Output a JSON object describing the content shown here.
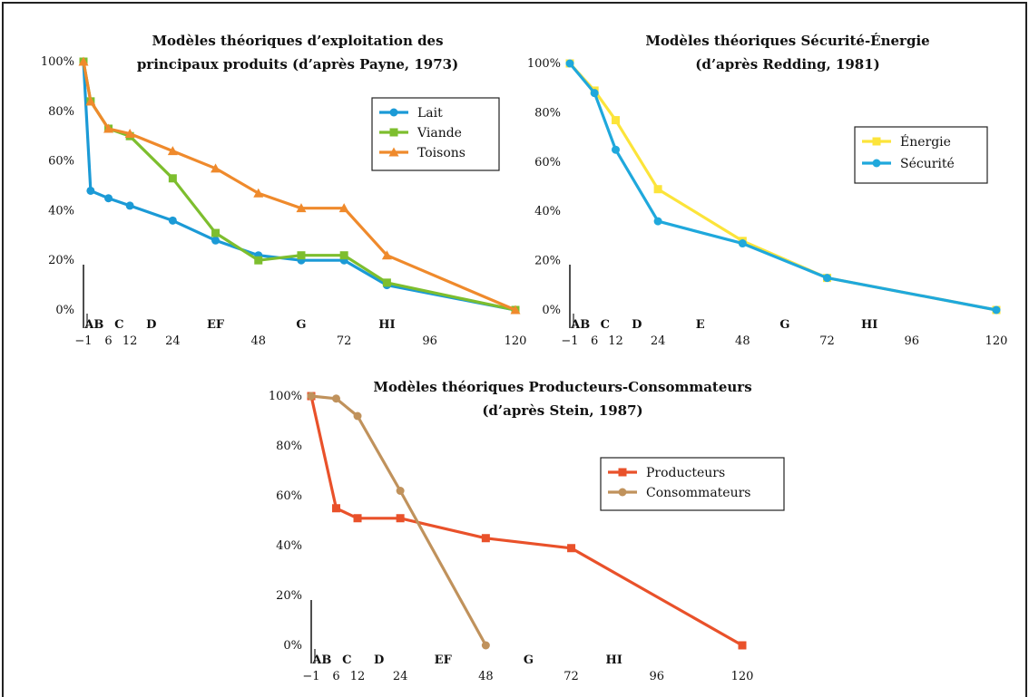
{
  "chart_data": [
    {
      "type": "line",
      "title_lines": [
        "Modèles théoriques d’exploitation des",
        "principaux produits (d’après Payne, 1973)"
      ],
      "xlabel": "",
      "ylabel": "",
      "xlim": [
        -1,
        120
      ],
      "ylim": [
        0,
        100
      ],
      "x_ticks": [
        -1,
        6,
        12,
        24,
        48,
        72,
        96,
        120
      ],
      "x_tick_labels": [
        "−1",
        "6",
        "12",
        "24",
        "48",
        "72",
        "96",
        "120"
      ],
      "y_ticks": [
        0,
        20,
        40,
        60,
        80,
        100
      ],
      "y_tick_labels": [
        "0%",
        "20%",
        "40%",
        "60%",
        "80%",
        "100%"
      ],
      "phases": [
        {
          "label": "AB",
          "x": 2
        },
        {
          "label": "C",
          "x": 9
        },
        {
          "label": "D",
          "x": 18
        },
        {
          "label": "EF",
          "x": 36
        },
        {
          "label": "G",
          "x": 60
        },
        {
          "label": "HI",
          "x": 84
        }
      ],
      "legend_position": "top-right",
      "series": [
        {
          "name": "Lait",
          "color": "#1b9ad6",
          "marker": "circle",
          "x": [
            -1,
            1,
            6,
            12,
            24,
            36,
            48,
            60,
            72,
            84,
            120
          ],
          "y": [
            100,
            48,
            45,
            42,
            36,
            28,
            22,
            20,
            20,
            10,
            0
          ]
        },
        {
          "name": "Viande",
          "color": "#7dbe2e",
          "marker": "square",
          "x": [
            -1,
            1,
            6,
            12,
            24,
            36,
            48,
            60,
            72,
            84,
            120
          ],
          "y": [
            100,
            84,
            73,
            70,
            53,
            31,
            20,
            22,
            22,
            11,
            0
          ]
        },
        {
          "name": "Toisons",
          "color": "#ef8a2c",
          "marker": "triangle",
          "x": [
            -1,
            1,
            6,
            12,
            24,
            36,
            48,
            60,
            72,
            84,
            120
          ],
          "y": [
            100,
            84,
            73,
            71,
            64,
            57,
            47,
            41,
            41,
            22,
            0
          ]
        }
      ]
    },
    {
      "type": "line",
      "title_lines": [
        "Modèles théoriques Sécurité-Énergie",
        "(d’après Redding, 1981)"
      ],
      "xlabel": "",
      "ylabel": "",
      "xlim": [
        -1,
        120
      ],
      "ylim": [
        0,
        100
      ],
      "x_ticks": [
        -1,
        6,
        12,
        24,
        48,
        72,
        96,
        120
      ],
      "x_tick_labels": [
        "−1",
        "6",
        "12",
        "24",
        "48",
        "72",
        "96",
        "120"
      ],
      "y_ticks": [
        0,
        20,
        40,
        60,
        80,
        100
      ],
      "y_tick_labels": [
        "0%",
        "20%",
        "40%",
        "60%",
        "80%",
        "100%"
      ],
      "phases": [
        {
          "label": "AB",
          "x": 2
        },
        {
          "label": "C",
          "x": 9
        },
        {
          "label": "D",
          "x": 18
        },
        {
          "label": "E",
          "x": 36
        },
        {
          "label": "G",
          "x": 60
        },
        {
          "label": "HI",
          "x": 84
        }
      ],
      "legend_position": "top-right",
      "series": [
        {
          "name": "Énergie",
          "color": "#fce43a",
          "marker": "square",
          "x": [
            -1,
            6,
            12,
            24,
            48,
            72,
            120
          ],
          "y": [
            100,
            89,
            77,
            49,
            28,
            13,
            0
          ]
        },
        {
          "name": "Sécurité",
          "color": "#1fa8dc",
          "marker": "circle",
          "x": [
            -1,
            6,
            12,
            24,
            48,
            72,
            120
          ],
          "y": [
            100,
            88,
            65,
            36,
            27,
            13,
            0
          ]
        }
      ]
    },
    {
      "type": "line",
      "title_lines": [
        "Modèles théoriques Producteurs-Consommateurs",
        "(d’après Stein, 1987)"
      ],
      "xlabel": "",
      "ylabel": "",
      "xlim": [
        -1,
        120
      ],
      "ylim": [
        0,
        100
      ],
      "x_ticks": [
        -1,
        6,
        12,
        24,
        48,
        72,
        96,
        120
      ],
      "x_tick_labels": [
        "−1",
        "6",
        "12",
        "24",
        "48",
        "72",
        "96",
        "120"
      ],
      "y_ticks": [
        0,
        20,
        40,
        60,
        80,
        100
      ],
      "y_tick_labels": [
        "0%",
        "20%",
        "40%",
        "60%",
        "80%",
        "100%"
      ],
      "phases": [
        {
          "label": "AB",
          "x": 2
        },
        {
          "label": "C",
          "x": 9
        },
        {
          "label": "D",
          "x": 18
        },
        {
          "label": "EF",
          "x": 36
        },
        {
          "label": "G",
          "x": 60
        },
        {
          "label": "HI",
          "x": 84
        }
      ],
      "legend_position": "right",
      "series": [
        {
          "name": "Producteurs",
          "color": "#e9512a",
          "marker": "square",
          "x": [
            -1,
            6,
            12,
            24,
            48,
            72,
            120
          ],
          "y": [
            100,
            55,
            51,
            51,
            43,
            39,
            0
          ]
        },
        {
          "name": "Consommateurs",
          "color": "#c0925c",
          "marker": "circle",
          "x": [
            -1,
            6,
            12,
            24,
            48
          ],
          "y": [
            100,
            99,
            92,
            62,
            0
          ]
        }
      ]
    }
  ]
}
